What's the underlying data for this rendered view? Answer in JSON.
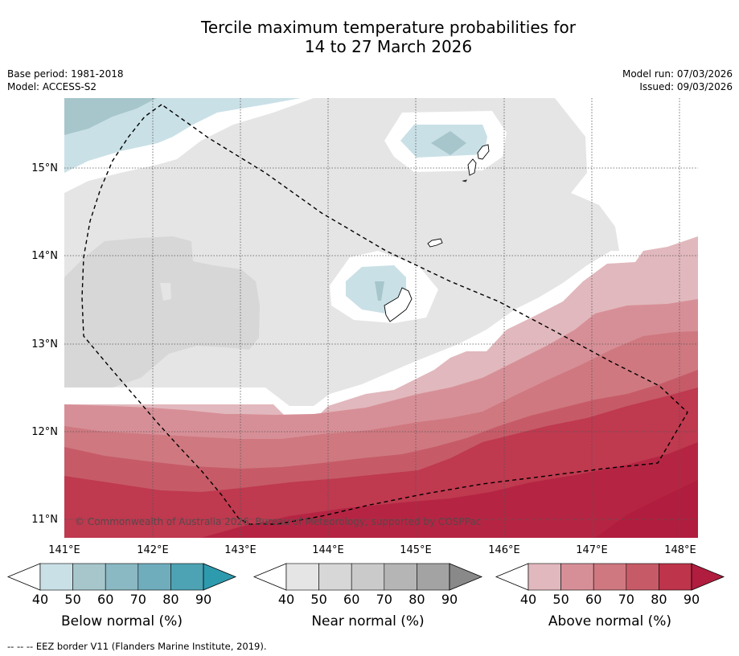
{
  "title_line1": "Tercile maximum temperature probabilities for",
  "title_line2": "14 to 27 March 2026",
  "meta": {
    "base_period": "Base period: 1981-2018",
    "model": "Model: ACCESS-S2",
    "model_run": "Model run: 07/03/2026",
    "issued": "Issued: 09/03/2026"
  },
  "map": {
    "lat_labels": [
      "15°N",
      "14°N",
      "13°N",
      "12°N",
      "11°N"
    ],
    "lon_labels": [
      "141°E",
      "142°E",
      "143°E",
      "144°E",
      "145°E",
      "146°E",
      "147°E",
      "148°E"
    ],
    "copyright": "© Commonwealth of Australia 2026, Bureau of Meteorology, supported by COSPPac"
  },
  "colorbars": [
    {
      "title": "Below normal (%)",
      "ticks": [
        "40",
        "50",
        "60",
        "70",
        "80",
        "90"
      ],
      "colors": [
        "#c9e0e6",
        "#a6c6cb",
        "#8ab8c3",
        "#6fadbd",
        "#4da3b3"
      ],
      "arrow": "#2e9aae"
    },
    {
      "title": "Near normal (%)",
      "ticks": [
        "40",
        "50",
        "60",
        "70",
        "80",
        "90"
      ],
      "colors": [
        "#e5e5e5",
        "#d7d7d7",
        "#cacaca",
        "#b5b5b5",
        "#a3a3a3"
      ],
      "arrow": "#898989"
    },
    {
      "title": "Above normal (%)",
      "ticks": [
        "40",
        "50",
        "60",
        "70",
        "80",
        "90"
      ],
      "colors": [
        "#e1b8bd",
        "#d78f97",
        "#cf7880",
        "#c65b67",
        "#bd344b"
      ],
      "arrow": "#b01d3e"
    }
  ],
  "footnote": "-- -- -- EEZ border V11 (Flanders Marine Institute, 2019)."
}
